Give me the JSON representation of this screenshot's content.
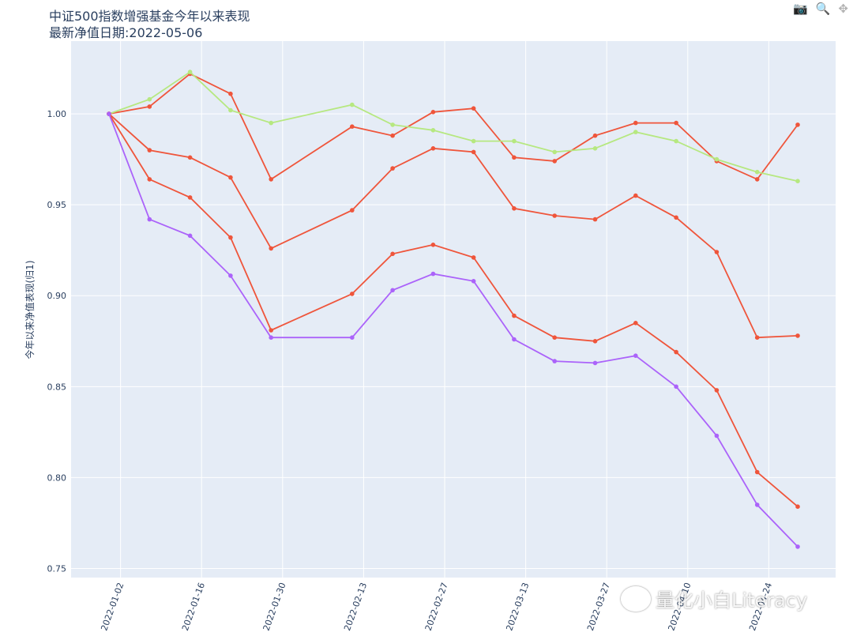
{
  "chart_data": {
    "type": "line",
    "title_lines": [
      "中证500指数增强基金今年以来表现",
      "最新净值日期:2022-05-06"
    ],
    "xlabel": "",
    "ylabel": "今年以来净值表现(归1)",
    "ylim": [
      0.745,
      1.04
    ],
    "y_ticks": [
      0.75,
      0.8,
      0.85,
      0.9,
      0.95,
      1.0
    ],
    "y_tick_labels": [
      "0.75",
      "0.80",
      "0.85",
      "0.90",
      "0.95",
      "1.00"
    ],
    "x_ticks": [
      "2022-01-02",
      "2022-01-16",
      "2022-01-30",
      "2022-02-13",
      "2022-02-27",
      "2022-03-13",
      "2022-03-27",
      "2022-04-10",
      "2022-04-24"
    ],
    "x": [
      "2021-12-31",
      "2022-01-07",
      "2022-01-14",
      "2022-01-21",
      "2022-01-28",
      "2022-02-11",
      "2022-02-18",
      "2022-02-25",
      "2022-03-04",
      "2022-03-11",
      "2022-03-18",
      "2022-03-25",
      "2022-04-01",
      "2022-04-08",
      "2022-04-15",
      "2022-04-22",
      "2022-04-29"
    ],
    "series": [
      {
        "color": "#ef553b",
        "values": [
          1.0,
          1.004,
          1.022,
          1.011,
          0.964,
          0.993,
          0.988,
          1.001,
          1.003,
          0.976,
          0.974,
          0.988,
          0.995,
          0.995,
          0.974,
          0.964,
          0.994
        ]
      },
      {
        "color": "#b6e880",
        "values": [
          1.0,
          1.008,
          1.023,
          1.002,
          0.995,
          1.005,
          0.994,
          0.991,
          0.985,
          0.985,
          0.979,
          0.981,
          0.99,
          0.985,
          0.975,
          0.968,
          0.963
        ]
      },
      {
        "color": "#ef553b",
        "values": [
          1.0,
          0.98,
          0.976,
          0.965,
          0.926,
          0.947,
          0.97,
          0.981,
          0.979,
          0.948,
          0.944,
          0.942,
          0.955,
          0.943,
          0.924,
          0.877,
          0.878
        ]
      },
      {
        "color": "#ef553b",
        "values": [
          1.0,
          0.964,
          0.954,
          0.932,
          0.881,
          0.901,
          0.923,
          0.928,
          0.921,
          0.889,
          0.877,
          0.875,
          0.885,
          0.869,
          0.848,
          0.803,
          0.784
        ]
      },
      {
        "color": "#ab63fa",
        "values": [
          1.0,
          0.942,
          0.933,
          0.911,
          0.877,
          0.877,
          0.903,
          0.912,
          0.908,
          0.876,
          0.864,
          0.863,
          0.867,
          0.85,
          0.823,
          0.785,
          0.762
        ]
      }
    ],
    "plot_bg": "#e5ecf6",
    "grid": true
  },
  "modebar": {
    "camera_icon": "camera-icon",
    "zoom_icon": "zoom-icon",
    "pan_icon": "pan-icon"
  },
  "watermark": {
    "text": "量化小白Literacy"
  }
}
